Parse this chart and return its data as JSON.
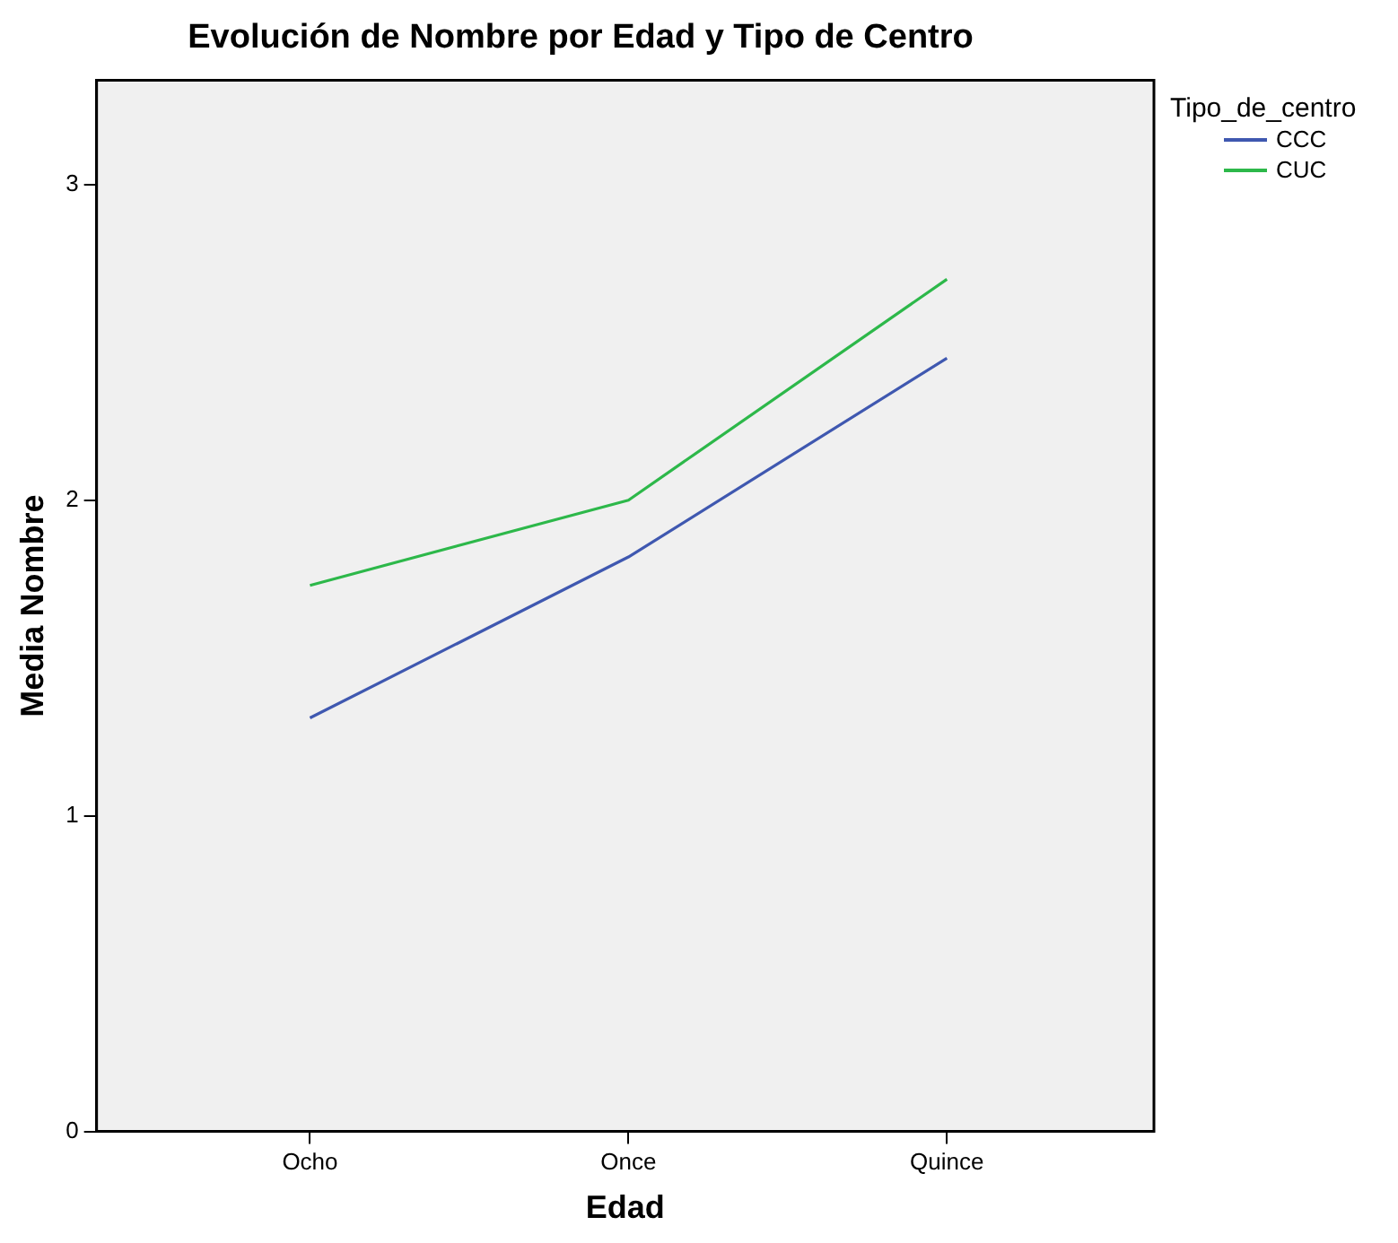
{
  "chart_data": {
    "type": "line",
    "title": "Evolución de Nombre por Edad y Tipo de Centro",
    "xlabel": "Edad",
    "ylabel": "Media Nombre",
    "legend_title": "Tipo_de_centro",
    "categories": [
      "Ocho",
      "Once",
      "Quince"
    ],
    "series": [
      {
        "name": "CCC",
        "color": "#3f58b0",
        "values": [
          1.31,
          1.82,
          2.45
        ]
      },
      {
        "name": "CUC",
        "color": "#2db84a",
        "values": [
          1.73,
          2.0,
          2.7
        ]
      }
    ],
    "ylim": [
      0,
      3.33
    ],
    "yticks": [
      0,
      1,
      2,
      3
    ],
    "legend": "top right",
    "marker": "none",
    "line_style": "solid"
  }
}
